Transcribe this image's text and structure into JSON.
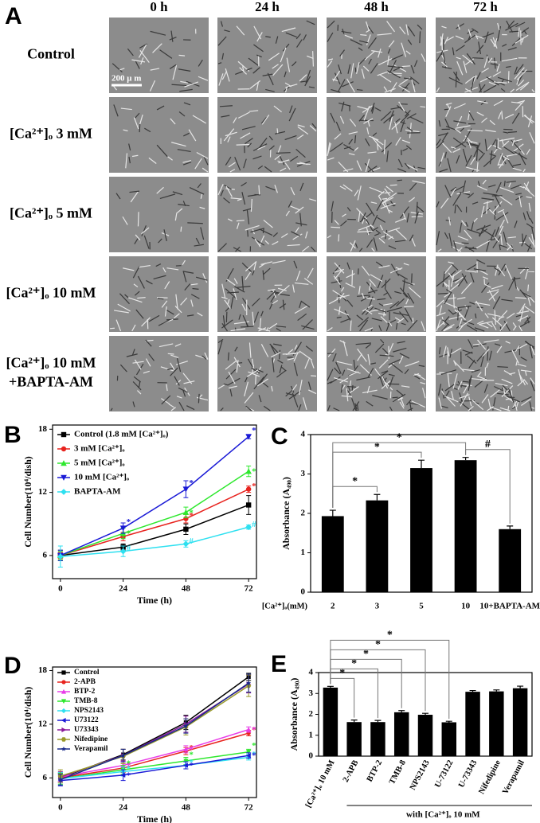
{
  "micrographs": {
    "panel": "A",
    "columns": [
      "0 h",
      "24 h",
      "48 h",
      "72 h"
    ],
    "rows": [
      [
        "Control"
      ],
      [
        "[Ca²⁺]ₒ 3 mM"
      ],
      [
        "[Ca²⁺]ₒ 5 mM"
      ],
      [
        "[Ca²⁺]ₒ 10 mM"
      ],
      [
        "[Ca²⁺]ₒ 10 mM",
        "+BAPTA-AM"
      ]
    ],
    "scale_bar": "200 μ m"
  },
  "chart_data": [
    {
      "panel": "B",
      "type": "line",
      "x": [
        0,
        24,
        48,
        72
      ],
      "xlim": [
        -3,
        75
      ],
      "xticks": [
        0,
        24,
        48,
        72
      ],
      "ylim": [
        3.8,
        18.4
      ],
      "yticks": [
        6,
        12,
        18
      ],
      "xlabel": "Time (h)",
      "ylabel": "Cell Number(10⁴/dish)",
      "legend": "upper left",
      "series": [
        {
          "name": "Control (1.8 mM [Ca²⁺]ₒ)",
          "color": "#000000",
          "marker": "square",
          "values": [
            6.0,
            6.8,
            8.5,
            10.8
          ],
          "errors": [
            0.5,
            0.3,
            0.5,
            0.9
          ]
        },
        {
          "name": "3 mM [Ca²⁺]ₒ",
          "color": "#e8231e",
          "marker": "circle",
          "values": [
            6.0,
            7.8,
            9.5,
            12.3
          ],
          "errors": [
            0.3,
            0.4,
            0.4,
            0.3
          ],
          "marks": [
            null,
            "*",
            "*",
            "*"
          ]
        },
        {
          "name": "5 mM [Ca²⁺]ₒ",
          "color": "#2ee82e",
          "marker": "triangle-up",
          "values": [
            6.0,
            8.1,
            10.1,
            14.0
          ],
          "errors": [
            0.4,
            0.5,
            0.5,
            0.5
          ],
          "marks": [
            null,
            "*",
            "*",
            "*"
          ]
        },
        {
          "name": "10 mM [Ca²⁺]ₒ",
          "color": "#1a1ad6",
          "marker": "triangle-down",
          "values": [
            6.0,
            8.6,
            12.3,
            17.3
          ],
          "errors": [
            0.5,
            0.5,
            0.8,
            0.2
          ],
          "marks": [
            null,
            "*",
            "*",
            "*"
          ]
        },
        {
          "name": "BAPTA-AM",
          "color": "#2ee0f0",
          "marker": "diamond",
          "values": [
            5.9,
            6.4,
            7.1,
            8.7
          ],
          "errors": [
            1.0,
            0.5,
            0.3,
            0.2
          ],
          "marks": [
            null,
            "#",
            "#",
            "#"
          ]
        }
      ]
    },
    {
      "panel": "C",
      "type": "bar",
      "categories": [
        "2",
        "3",
        "5",
        "10",
        "10+BAPTA-AM"
      ],
      "values": [
        1.93,
        2.33,
        3.15,
        3.35,
        1.6
      ],
      "errors": [
        0.15,
        0.15,
        0.2,
        0.07,
        0.08
      ],
      "color": "#000000",
      "ylim": [
        0,
        4
      ],
      "yticks": [
        0,
        1,
        2,
        3,
        4
      ],
      "xlabel": "[Ca²⁺]ₒ(mM)",
      "ylabel": "Absorbance (A₄₉₀)",
      "comparisons": [
        {
          "from": 0,
          "to": 1,
          "label": "*"
        },
        {
          "from": 0,
          "to": 2,
          "label": "*"
        },
        {
          "from": 0,
          "to": 3,
          "label": "*"
        },
        {
          "from": 3,
          "to": 4,
          "label": "#"
        }
      ]
    },
    {
      "panel": "D",
      "type": "line",
      "x": [
        0,
        24,
        48,
        72
      ],
      "xlim": [
        -3,
        75
      ],
      "xticks": [
        0,
        24,
        48,
        72
      ],
      "ylim": [
        3.8,
        18.4
      ],
      "yticks": [
        6,
        12,
        18
      ],
      "xlabel": "Time (h)",
      "ylabel": "Cell Number(10⁴/dish)",
      "legend": "upper left",
      "series": [
        {
          "name": "Control",
          "color": "#000000",
          "marker": "square",
          "values": [
            6.0,
            8.6,
            12.2,
            17.3
          ],
          "errors": [
            0.5,
            0.6,
            0.8,
            0.4
          ]
        },
        {
          "name": "2-APB",
          "color": "#e8231e",
          "marker": "circle",
          "values": [
            6.0,
            7.1,
            9.0,
            11.0
          ],
          "errors": [
            0.5,
            0.5,
            0.4,
            0.3
          ],
          "marks": [
            null,
            "*",
            "*",
            "*"
          ]
        },
        {
          "name": "BTP-2",
          "color": "#e83ce8",
          "marker": "triangle-up",
          "values": [
            6.1,
            7.4,
            9.2,
            11.4
          ],
          "errors": [
            0.5,
            0.5,
            0.4,
            0.3
          ],
          "marks": [
            null,
            "*",
            "*",
            "*"
          ]
        },
        {
          "name": "TMB-8",
          "color": "#2ee82e",
          "marker": "triangle-down",
          "values": [
            5.9,
            6.9,
            7.9,
            8.9
          ],
          "errors": [
            0.6,
            0.5,
            0.4,
            0.3
          ],
          "marks": [
            null,
            "*",
            "*",
            "*"
          ]
        },
        {
          "name": "NPS2143",
          "color": "#2ee0f0",
          "marker": "diamond",
          "values": [
            5.9,
            6.7,
            7.4,
            8.3
          ],
          "errors": [
            0.7,
            0.5,
            0.4,
            0.3
          ],
          "marks": [
            null,
            "*",
            "*",
            "*"
          ]
        },
        {
          "name": "U73122",
          "color": "#1a1ad6",
          "marker": "triangle-left",
          "values": [
            5.7,
            6.3,
            7.4,
            8.5
          ],
          "errors": [
            0.6,
            0.6,
            0.4,
            0.3
          ],
          "marks": [
            null,
            "*",
            "*",
            "*"
          ]
        },
        {
          "name": "U73343",
          "color": "#8a1a9a",
          "marker": "triangle-right",
          "values": [
            6.1,
            8.5,
            12.0,
            16.5
          ],
          "errors": [
            0.6,
            0.7,
            0.9,
            1.0
          ]
        },
        {
          "name": "Nifedipine",
          "color": "#9a9a2a",
          "marker": "hexagon",
          "values": [
            6.2,
            8.4,
            11.7,
            16.3
          ],
          "errors": [
            0.7,
            0.8,
            0.9,
            1.2
          ]
        },
        {
          "name": "Verapamil",
          "color": "#1a2a8a",
          "marker": "star",
          "values": [
            5.8,
            8.5,
            11.8,
            16.6
          ],
          "errors": [
            0.6,
            0.7,
            0.8,
            1.0
          ]
        }
      ]
    },
    {
      "panel": "E",
      "type": "bar",
      "categories": [
        "[Ca²⁺]ₒ 10 mM",
        "2-APB",
        "BTP-2",
        "TMB-8",
        "NPS2143",
        "U-73122",
        "U-73343",
        "Nifedipine",
        "Verapamil"
      ],
      "values": [
        3.28,
        1.63,
        1.63,
        2.1,
        1.98,
        1.62,
        3.08,
        3.1,
        3.25
      ],
      "errors": [
        0.06,
        0.1,
        0.08,
        0.08,
        0.07,
        0.05,
        0.06,
        0.07,
        0.1
      ],
      "color": "#000000",
      "ylim": [
        0,
        4
      ],
      "yticks": [
        0,
        1,
        2,
        3,
        4
      ],
      "ylabel": "Absorbance (A₄₉₀)",
      "rotate_labels": true,
      "group_label": "with [Ca²⁺]ₒ 10 mM",
      "comparisons": [
        {
          "from": 0,
          "to": 1,
          "label": "*"
        },
        {
          "from": 0,
          "to": 2,
          "label": "*"
        },
        {
          "from": 0,
          "to": 3,
          "label": "*"
        },
        {
          "from": 0,
          "to": 4,
          "label": "*"
        },
        {
          "from": 0,
          "to": 5,
          "label": "*"
        }
      ]
    }
  ]
}
